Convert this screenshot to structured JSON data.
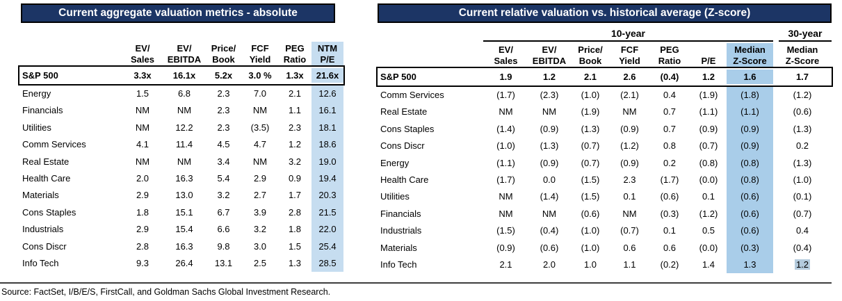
{
  "colors": {
    "title_bg": "#1c3565",
    "title_text": "#ffffff",
    "left_highlight": "#c6ddf0",
    "right_highlight": "#a9cde9",
    "selection_highlight": "#b4cbdd"
  },
  "left_table": {
    "title": "Current aggregate valuation metrics - absolute",
    "columns": [
      [
        "EV/",
        "Sales"
      ],
      [
        "EV/",
        "EBITDA"
      ],
      [
        "Price/",
        "Book"
      ],
      [
        "FCF",
        "Yield"
      ],
      [
        "PEG",
        "Ratio"
      ],
      [
        "NTM",
        "P/E"
      ]
    ],
    "highlight_column_index": 5,
    "rows": [
      {
        "label": "S&P 500",
        "values": [
          "3.3x",
          "16.1x",
          "5.2x",
          "3.0 %",
          "1.3x",
          "21.6x"
        ],
        "emphasis": true
      },
      {
        "label": "Energy",
        "values": [
          "1.5",
          "6.8",
          "2.3",
          "7.0",
          "2.1",
          "12.6"
        ]
      },
      {
        "label": "Financials",
        "values": [
          "NM",
          "NM",
          "2.3",
          "NM",
          "1.1",
          "16.1"
        ]
      },
      {
        "label": "Utilities",
        "values": [
          "NM",
          "12.2",
          "2.3",
          "(3.5)",
          "2.3",
          "18.1"
        ]
      },
      {
        "label": "Comm Services",
        "values": [
          "4.1",
          "11.4",
          "4.5",
          "4.7",
          "1.2",
          "18.6"
        ]
      },
      {
        "label": "Real Estate",
        "values": [
          "NM",
          "NM",
          "3.4",
          "NM",
          "3.2",
          "19.0"
        ]
      },
      {
        "label": "Health Care",
        "values": [
          "2.0",
          "16.3",
          "5.4",
          "2.9",
          "0.9",
          "19.4"
        ]
      },
      {
        "label": "Materials",
        "values": [
          "2.9",
          "13.0",
          "3.2",
          "2.7",
          "1.7",
          "20.3"
        ]
      },
      {
        "label": "Cons Staples",
        "values": [
          "1.8",
          "15.1",
          "6.7",
          "3.9",
          "2.8",
          "21.5"
        ]
      },
      {
        "label": "Industrials",
        "values": [
          "2.9",
          "15.4",
          "6.6",
          "3.2",
          "1.8",
          "22.0"
        ]
      },
      {
        "label": "Cons Discr",
        "values": [
          "2.8",
          "16.3",
          "9.8",
          "3.0",
          "1.5",
          "25.4"
        ]
      },
      {
        "label": "Info Tech",
        "values": [
          "9.3",
          "26.4",
          "13.1",
          "2.5",
          "1.3",
          "28.5"
        ]
      }
    ]
  },
  "right_table": {
    "title": "Current relative valuation vs. historical average (Z-score)",
    "group_10yr": "10-year",
    "group_30yr": "30-year",
    "columns": [
      [
        "EV/",
        "Sales"
      ],
      [
        "EV/",
        "EBITDA"
      ],
      [
        "Price/",
        "Book"
      ],
      [
        "FCF",
        "Yield"
      ],
      [
        "PEG",
        "Ratio"
      ],
      [
        "",
        "P/E"
      ],
      [
        "Median",
        "Z-Score"
      ],
      [
        "Median",
        "Z-Score"
      ]
    ],
    "highlight_column_index": 6,
    "rows": [
      {
        "label": "S&P 500",
        "values": [
          "1.9",
          "1.2",
          "2.1",
          "2.6",
          "(0.4)",
          "1.2",
          "1.6",
          "1.7"
        ],
        "emphasis": true
      },
      {
        "label": "Comm Services",
        "values": [
          "(1.7)",
          "(2.3)",
          "(1.0)",
          "(2.1)",
          "0.4",
          "(1.9)",
          "(1.8)",
          "(1.2)"
        ]
      },
      {
        "label": "Real Estate",
        "values": [
          "NM",
          "NM",
          "(1.9)",
          "NM",
          "0.7",
          "(1.1)",
          "(1.1)",
          "(0.6)"
        ]
      },
      {
        "label": "Cons Staples",
        "values": [
          "(1.4)",
          "(0.9)",
          "(1.3)",
          "(0.9)",
          "0.7",
          "(0.9)",
          "(0.9)",
          "(1.3)"
        ]
      },
      {
        "label": "Cons Discr",
        "values": [
          "(1.0)",
          "(1.3)",
          "(0.7)",
          "(1.2)",
          "0.8",
          "(0.7)",
          "(0.9)",
          "0.2"
        ]
      },
      {
        "label": "Energy",
        "values": [
          "(1.1)",
          "(0.9)",
          "(0.7)",
          "(0.9)",
          "0.2",
          "(0.8)",
          "(0.8)",
          "(1.3)"
        ]
      },
      {
        "label": "Health Care",
        "values": [
          "(1.7)",
          "0.0",
          "(1.5)",
          "2.3",
          "(1.7)",
          "(0.0)",
          "(0.8)",
          "(1.0)"
        ]
      },
      {
        "label": "Utilities",
        "values": [
          "NM",
          "(1.4)",
          "(1.5)",
          "0.1",
          "(0.6)",
          "0.1",
          "(0.6)",
          "(0.1)"
        ]
      },
      {
        "label": "Financials",
        "values": [
          "NM",
          "NM",
          "(0.6)",
          "NM",
          "(0.3)",
          "(1.2)",
          "(0.6)",
          "(0.7)"
        ]
      },
      {
        "label": "Industrials",
        "values": [
          "(1.5)",
          "(0.4)",
          "(1.0)",
          "(0.7)",
          "0.1",
          "0.5",
          "(0.6)",
          "0.4"
        ]
      },
      {
        "label": "Materials",
        "values": [
          "(0.9)",
          "(0.6)",
          "(1.0)",
          "0.6",
          "0.6",
          "(0.0)",
          "(0.3)",
          "(0.4)"
        ]
      },
      {
        "label": "Info Tech",
        "values": [
          "2.1",
          "2.0",
          "1.0",
          "1.1",
          "(0.2)",
          "1.4",
          "1.3",
          "1.2"
        ],
        "last_value_selected": true
      }
    ]
  },
  "footer": {
    "source": "Source: FactSet, I/B/E/S, FirstCall, and Goldman Sachs Global Investment Research."
  }
}
